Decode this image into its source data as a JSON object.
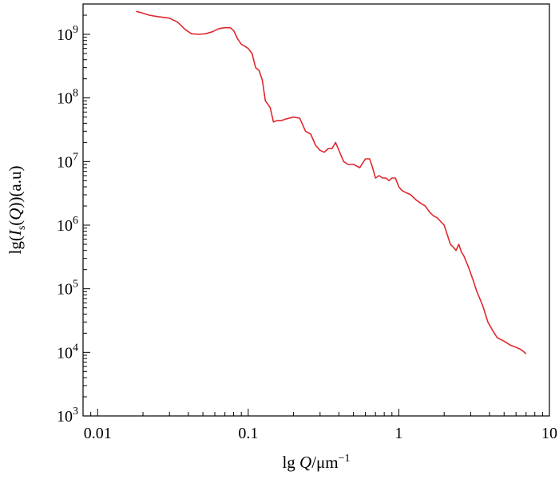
{
  "chart_data": {
    "type": "line",
    "title": "",
    "x_scale": "log",
    "y_scale": "log",
    "xlim": [
      0.008,
      10
    ],
    "ylim": [
      1000,
      3000000000
    ],
    "grid": false,
    "legend": "none",
    "xlabel": {
      "prefix": "lg ",
      "variable": "Q",
      "suffix": "/μm",
      "superscript": "−1"
    },
    "ylabel": {
      "prefix": "lg(",
      "variable": "I",
      "subscript": "s",
      "middle_open": "(",
      "argument": "Q",
      "suffix": "))(a.u)"
    },
    "x_ticks": [
      {
        "value": 0.01,
        "label": "0.01"
      },
      {
        "value": 0.1,
        "label": "0.1"
      },
      {
        "value": 1,
        "label": "1"
      },
      {
        "value": 10,
        "label": "10"
      }
    ],
    "y_ticks": [
      {
        "value": 1000,
        "base": "10",
        "exponent": "3"
      },
      {
        "value": 10000,
        "base": "10",
        "exponent": "4"
      },
      {
        "value": 100000,
        "base": "10",
        "exponent": "5"
      },
      {
        "value": 1000000,
        "base": "10",
        "exponent": "6"
      },
      {
        "value": 10000000,
        "base": "10",
        "exponent": "7"
      },
      {
        "value": 100000000,
        "base": "10",
        "exponent": "8"
      },
      {
        "value": 1000000000,
        "base": "10",
        "exponent": "9"
      }
    ],
    "series": [
      {
        "color": "#e0282e",
        "x": [
          0.018,
          0.02,
          0.022,
          0.025,
          0.03,
          0.034,
          0.038,
          0.042,
          0.047,
          0.052,
          0.058,
          0.064,
          0.07,
          0.076,
          0.08,
          0.085,
          0.09,
          0.095,
          0.1,
          0.106,
          0.112,
          0.118,
          0.124,
          0.13,
          0.135,
          0.14,
          0.147,
          0.155,
          0.165,
          0.18,
          0.2,
          0.22,
          0.24,
          0.26,
          0.28,
          0.3,
          0.32,
          0.34,
          0.36,
          0.38,
          0.4,
          0.43,
          0.46,
          0.5,
          0.55,
          0.6,
          0.64,
          0.67,
          0.7,
          0.74,
          0.78,
          0.82,
          0.86,
          0.9,
          0.95,
          1.0,
          1.05,
          1.1,
          1.2,
          1.3,
          1.4,
          1.5,
          1.6,
          1.7,
          1.8,
          2.0,
          2.1,
          2.2,
          2.3,
          2.4,
          2.5,
          2.6,
          2.7,
          2.9,
          3.1,
          3.3,
          3.6,
          3.9,
          4.2,
          4.5,
          5.0,
          5.5,
          6.0,
          6.5,
          7.0
        ],
        "y": [
          2300000000,
          2150000000,
          2000000000,
          1900000000,
          1800000000,
          1550000000,
          1200000000,
          1020000000,
          1000000000,
          1020000000,
          1100000000,
          1230000000,
          1270000000,
          1270000000,
          1150000000,
          850000000,
          700000000,
          650000000,
          600000000,
          500000000,
          300000000,
          270000000,
          190000000,
          90000000,
          80000000,
          70000000,
          42000000,
          44000000,
          44000000,
          47000000,
          50000000,
          48000000,
          30000000,
          27000000,
          18000000,
          15000000,
          14000000,
          16000000,
          16000000,
          20000000,
          15000000,
          10000000,
          9000000,
          9000000,
          8000000,
          11000000,
          11000000,
          8000000,
          5500000,
          6000000,
          5500000,
          5500000,
          5000000,
          5500000,
          5500000,
          4000000,
          3500000,
          3300000,
          3000000,
          2500000,
          2200000,
          2000000,
          1600000,
          1400000,
          1300000,
          1000000,
          700000,
          500000,
          450000,
          400000,
          500000,
          380000,
          330000,
          220000,
          140000,
          90000,
          55000,
          30000,
          22000,
          17000,
          15000,
          13000,
          12000,
          11000,
          9500
        ]
      }
    ]
  }
}
